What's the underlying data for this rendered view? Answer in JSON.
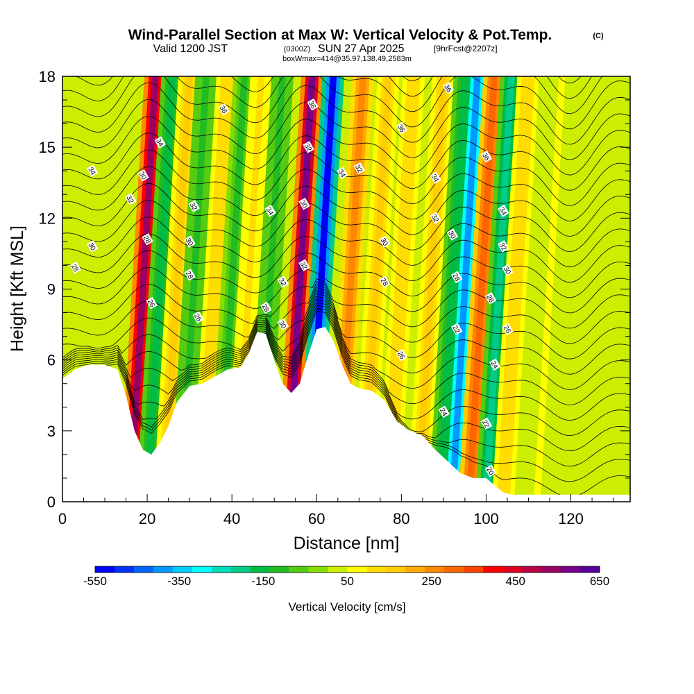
{
  "title": {
    "main": "Wind-Parallel Section at Max W: Vertical Velocity & Pot.Temp.",
    "copyright": "(C)",
    "valid_prefix": "Valid 1200 JST",
    "valid_utc": "(0300Z)",
    "valid_date": "SUN 27 Apr 2025",
    "forecast": "[9hrFcst@2207z]",
    "box": "boxWmax=414@35.97,138.49,2583m"
  },
  "chart_data": {
    "type": "heatmap",
    "xlabel": "Distance [nm]",
    "ylabel": "Height [Kft MSL]",
    "xlim": [
      0,
      134
    ],
    "ylim": [
      0,
      18
    ],
    "x_ticks": [
      0,
      20,
      40,
      60,
      80,
      100,
      120
    ],
    "y_ticks": [
      0,
      3,
      6,
      9,
      12,
      15,
      18
    ],
    "grid": false,
    "colorbar": {
      "label": "Vertical Velocity [cm/s]",
      "ticks": [
        -550,
        -350,
        -150,
        50,
        250,
        450,
        650
      ],
      "levels": [
        -550,
        -500,
        -450,
        -400,
        -350,
        -300,
        -250,
        -200,
        -150,
        -100,
        -50,
        0,
        50,
        100,
        150,
        200,
        250,
        300,
        350,
        400,
        450,
        500,
        550,
        600,
        650
      ],
      "colors": [
        "#0000ff",
        "#0033ff",
        "#0066ff",
        "#0099ff",
        "#00ccff",
        "#00ffff",
        "#00ddbb",
        "#00cc88",
        "#00bb44",
        "#22bb22",
        "#55cc11",
        "#88dd00",
        "#ccee00",
        "#ffff00",
        "#ffdd00",
        "#ffcc00",
        "#ffaa00",
        "#ff8800",
        "#ff6600",
        "#ff4400",
        "#ff0000",
        "#dd0022",
        "#bb0044",
        "#990066",
        "#770088",
        "#550099"
      ]
    },
    "terrain": {
      "x": [
        0,
        3,
        6,
        10,
        13,
        15,
        17,
        19,
        21,
        23,
        25,
        27,
        30,
        33,
        36,
        39,
        42,
        44,
        46,
        48,
        50,
        52,
        54,
        56,
        58,
        60,
        62,
        64,
        66,
        68,
        70,
        73,
        76,
        79,
        82,
        85,
        88,
        91,
        94,
        97,
        100,
        102,
        104,
        106,
        110,
        120,
        134
      ],
      "height_kft": [
        5.2,
        5.6,
        5.8,
        5.8,
        5.6,
        4.5,
        3.0,
        2.2,
        2.0,
        2.5,
        3.2,
        4.2,
        4.9,
        5.0,
        5.3,
        5.6,
        5.7,
        6.3,
        7.2,
        7.1,
        6.0,
        5.0,
        4.6,
        5.0,
        6.2,
        7.3,
        7.4,
        6.8,
        5.8,
        5.0,
        4.8,
        4.7,
        4.3,
        3.4,
        3.0,
        2.8,
        2.2,
        1.7,
        1.2,
        1.0,
        1.0,
        0.7,
        0.4,
        0.3,
        0.3,
        0.3,
        0.3
      ]
    },
    "w_features": [
      {
        "x": 16,
        "w": 560
      },
      {
        "x": 20,
        "w": -150
      },
      {
        "x": 24,
        "w": 200
      },
      {
        "x": 28,
        "w": -120
      },
      {
        "x": 33,
        "w": 150
      },
      {
        "x": 37,
        "w": -100
      },
      {
        "x": 41,
        "w": 120
      },
      {
        "x": 46,
        "w": -130
      },
      {
        "x": 53,
        "w": 650
      },
      {
        "x": 58,
        "w": -550
      },
      {
        "x": 65,
        "w": 300
      },
      {
        "x": 71,
        "w": 180
      },
      {
        "x": 77,
        "w": 150
      },
      {
        "x": 84,
        "w": 200
      },
      {
        "x": 89,
        "w": -150
      },
      {
        "x": 92,
        "w": -400
      },
      {
        "x": 96,
        "w": 350
      },
      {
        "x": 100,
        "w": -200
      },
      {
        "x": 104,
        "w": 150
      },
      {
        "x": 112,
        "w": 60
      }
    ],
    "theta_labels": [
      {
        "x": 7,
        "y": 14.0,
        "text": "34"
      },
      {
        "x": 7,
        "y": 10.8,
        "text": "30"
      },
      {
        "x": 3,
        "y": 9.9,
        "text": "28"
      },
      {
        "x": 16,
        "y": 12.8,
        "text": "32"
      },
      {
        "x": 19,
        "y": 13.8,
        "text": "30"
      },
      {
        "x": 23,
        "y": 15.2,
        "text": "34"
      },
      {
        "x": 20,
        "y": 11.1,
        "text": "28"
      },
      {
        "x": 21,
        "y": 8.4,
        "text": "26"
      },
      {
        "x": 31,
        "y": 12.5,
        "text": "32"
      },
      {
        "x": 30,
        "y": 11.0,
        "text": "30"
      },
      {
        "x": 30,
        "y": 9.6,
        "text": "28"
      },
      {
        "x": 32,
        "y": 7.8,
        "text": "26"
      },
      {
        "x": 38,
        "y": 16.6,
        "text": "36"
      },
      {
        "x": 49,
        "y": 12.3,
        "text": "34"
      },
      {
        "x": 48,
        "y": 8.2,
        "text": "28"
      },
      {
        "x": 52,
        "y": 9.3,
        "text": "32"
      },
      {
        "x": 52,
        "y": 7.5,
        "text": "30"
      },
      {
        "x": 57,
        "y": 12.6,
        "text": "30"
      },
      {
        "x": 57,
        "y": 10.0,
        "text": "32"
      },
      {
        "x": 58,
        "y": 15.0,
        "text": "32"
      },
      {
        "x": 59,
        "y": 16.8,
        "text": "36"
      },
      {
        "x": 66,
        "y": 13.9,
        "text": "34"
      },
      {
        "x": 70,
        "y": 14.1,
        "text": "32"
      },
      {
        "x": 80,
        "y": 15.8,
        "text": "36"
      },
      {
        "x": 76,
        "y": 11.0,
        "text": "30"
      },
      {
        "x": 76,
        "y": 9.3,
        "text": "28"
      },
      {
        "x": 80,
        "y": 6.2,
        "text": "26"
      },
      {
        "x": 88,
        "y": 12.0,
        "text": "32"
      },
      {
        "x": 88,
        "y": 13.7,
        "text": "34"
      },
      {
        "x": 91,
        "y": 17.5,
        "text": "36"
      },
      {
        "x": 92,
        "y": 11.3,
        "text": "30"
      },
      {
        "x": 93,
        "y": 9.5,
        "text": "28"
      },
      {
        "x": 93,
        "y": 7.3,
        "text": "22"
      },
      {
        "x": 90,
        "y": 3.8,
        "text": "24"
      },
      {
        "x": 100,
        "y": 14.6,
        "text": "36"
      },
      {
        "x": 104,
        "y": 12.3,
        "text": "34"
      },
      {
        "x": 104,
        "y": 10.8,
        "text": "32"
      },
      {
        "x": 105,
        "y": 9.8,
        "text": "30"
      },
      {
        "x": 101,
        "y": 8.6,
        "text": "28"
      },
      {
        "x": 105,
        "y": 7.3,
        "text": "26"
      },
      {
        "x": 102,
        "y": 5.8,
        "text": "24"
      },
      {
        "x": 100,
        "y": 3.3,
        "text": "22"
      },
      {
        "x": 101,
        "y": 1.3,
        "text": "20"
      }
    ]
  }
}
